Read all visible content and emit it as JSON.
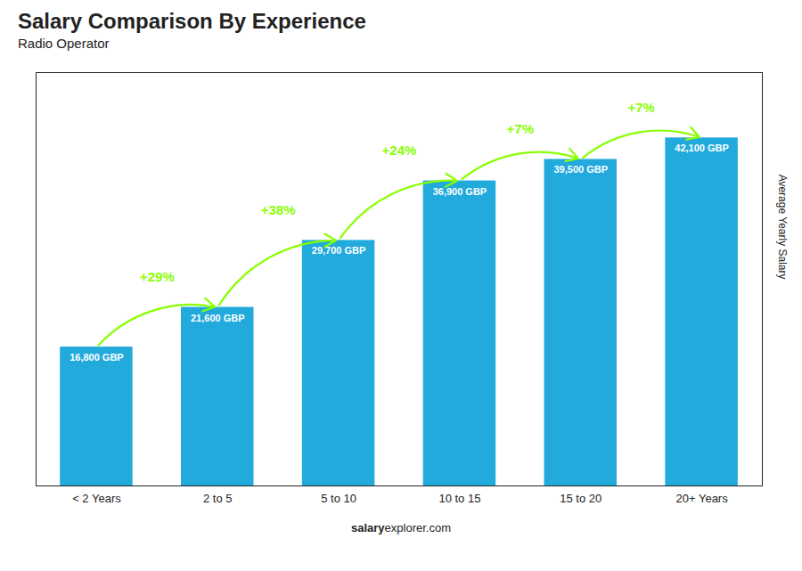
{
  "chart_data": {
    "type": "bar",
    "title": "Salary Comparison By Experience",
    "subtitle": "Radio Operator",
    "ylabel": "Average Yearly Salary",
    "footer": [
      "salary",
      "explorer.com"
    ],
    "categories": [
      "< 2 Years",
      "2 to 5",
      "5 to 10",
      "10 to 15",
      "15 to 20",
      "20+ Years"
    ],
    "values": [
      16800,
      21600,
      29700,
      36900,
      39500,
      42100
    ],
    "value_labels": [
      "16,800 GBP",
      "21,600 GBP",
      "29,700 GBP",
      "36,900 GBP",
      "39,500 GBP",
      "42,100 GBP"
    ],
    "data_labels": true,
    "color": "#22aadd",
    "ylim": [
      0,
      50000
    ],
    "tick_labels": "x",
    "grid": false,
    "annotations": [
      {
        "text": "+29%",
        "from": "< 2 Years",
        "to": "2 to 5",
        "color": "#88ff00"
      },
      {
        "text": "+38%",
        "from": "2 to 5",
        "to": "5 to 10",
        "color": "#88ff00"
      },
      {
        "text": "+24%",
        "from": "5 to 10",
        "to": "10 to 15",
        "color": "#88ff00"
      },
      {
        "text": "+7%",
        "from": "10 to 15",
        "to": "15 to 20",
        "color": "#88ff00"
      },
      {
        "text": "+7%",
        "from": "15 to 20",
        "to": "20+ Years",
        "color": "#88ff00"
      }
    ]
  }
}
